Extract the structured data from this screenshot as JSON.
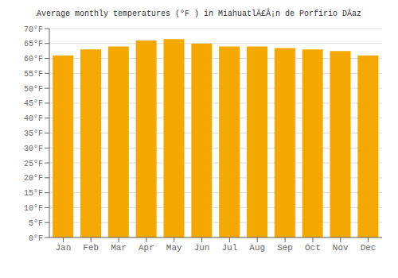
{
  "chart_data": {
    "type": "bar",
    "title": "Average monthly temperatures (°F ) in MiahuatlÃ£Â¡n de Porfirio DÃ­az",
    "categories": [
      "Jan",
      "Feb",
      "Mar",
      "Apr",
      "May",
      "Jun",
      "Jul",
      "Aug",
      "Sep",
      "Oct",
      "Nov",
      "Dec"
    ],
    "values": [
      61,
      63,
      64,
      66,
      66.5,
      65,
      64,
      64,
      63.5,
      63,
      62.5,
      61
    ],
    "color": "#F5A800",
    "ylim": [
      0,
      70
    ],
    "yticks": [
      {
        "value": 0,
        "label": "0°F"
      },
      {
        "value": 5,
        "label": "5°F"
      },
      {
        "value": 10,
        "label": "10°F"
      },
      {
        "value": 15,
        "label": "15°F"
      },
      {
        "value": 20,
        "label": "20°F"
      },
      {
        "value": 25,
        "label": "25°F"
      },
      {
        "value": 30,
        "label": "30°F"
      },
      {
        "value": 35,
        "label": "35°F"
      },
      {
        "value": 40,
        "label": "40°F"
      },
      {
        "value": 45,
        "label": "45°F"
      },
      {
        "value": 50,
        "label": "50°F"
      },
      {
        "value": 55,
        "label": "55°F"
      },
      {
        "value": 60,
        "label": "60°F"
      },
      {
        "value": 65,
        "label": "65°F"
      },
      {
        "value": 70,
        "label": "70°F"
      }
    ],
    "grid": true
  }
}
